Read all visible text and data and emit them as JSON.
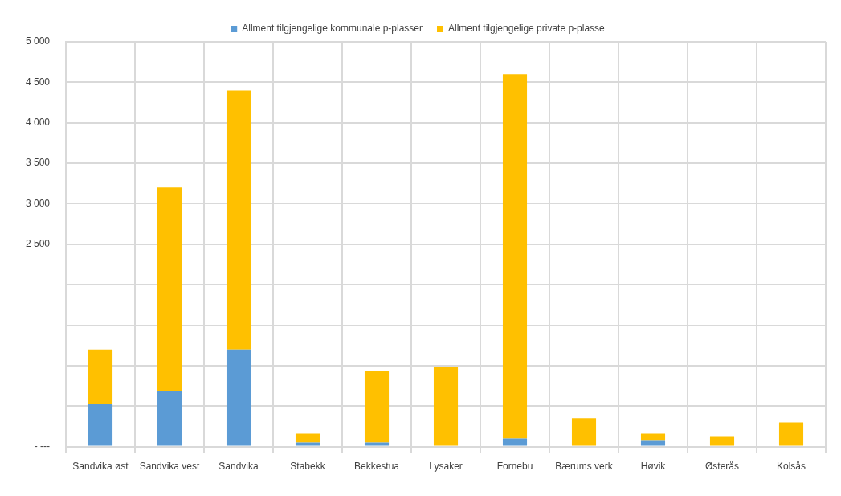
{
  "chart_data": {
    "type": "bar",
    "stacked": true,
    "legend": "top",
    "grid": true,
    "categories": [
      "Sandvika øst",
      "Sandvika vest",
      "Sandvika",
      "Stabekk",
      "Bekkestua",
      "Lysaker",
      "Fornebu",
      "Bærums verk",
      "Høvik",
      "Østerås",
      "Kolsås"
    ],
    "series": [
      {
        "name": "Allment tilgjengelige kommunale p-plasser",
        "color": "#5b9bd5",
        "values": [
          530,
          680,
          1200,
          50,
          50,
          0,
          100,
          0,
          80,
          0,
          0
        ]
      },
      {
        "name": "Allment tilgjengelige private p-plasse",
        "color": "#ffc000",
        "values": [
          670,
          2520,
          3200,
          110,
          890,
          990,
          4500,
          350,
          80,
          130,
          300
        ]
      }
    ],
    "ylim": [
      0,
      5000
    ],
    "yticks": [
      {
        "value": 0,
        "label": "- ---"
      },
      {
        "value": 500,
        "label": null
      },
      {
        "value": 1000,
        "label": null
      },
      {
        "value": 1500,
        "label": null
      },
      {
        "value": 2000,
        "label": null
      },
      {
        "value": 2500,
        "label": "2 500"
      },
      {
        "value": 3000,
        "label": "3 000"
      },
      {
        "value": 3500,
        "label": "3 500"
      },
      {
        "value": 4000,
        "label": "4 000"
      },
      {
        "value": 4500,
        "label": "4 500"
      },
      {
        "value": 5000,
        "label": "5 000"
      }
    ]
  }
}
